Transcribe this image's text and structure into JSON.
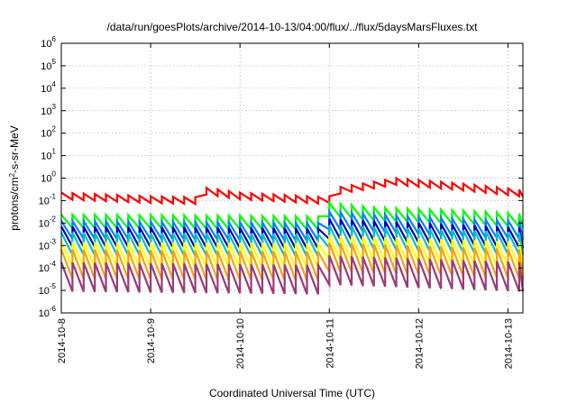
{
  "chart_data": {
    "type": "line",
    "title": "/data/run/goesPlots/archive/2014-10-13/04:00/flux/../flux/5daysMarsFluxes.txt",
    "xlabel": "Coordinated Universal Time (UTC)",
    "ylabel": "protons/cm²-s-sr-MeV",
    "ylabel_parts": {
      "pre": "protons/cm",
      "sup": "2",
      "post": "-s-sr-MeV"
    },
    "y_scale": "log",
    "ylim": [
      1e-06,
      1000000.0
    ],
    "xlim": [
      "2014-10-08T00:00",
      "2014-10-13T04:00"
    ],
    "grid": true,
    "legend": "none",
    "x_ticks": [
      {
        "label": "2014-10-8",
        "at": "2014-10-08T00:00"
      },
      {
        "label": "2014-10-9",
        "at": "2014-10-09T00:00"
      },
      {
        "label": "2014-10-10",
        "at": "2014-10-10T00:00"
      },
      {
        "label": "2014-10-11",
        "at": "2014-10-11T00:00"
      },
      {
        "label": "2014-10-12",
        "at": "2014-10-12T00:00"
      },
      {
        "label": "2014-10-13",
        "at": "2014-10-13T00:00"
      }
    ],
    "y_ticks": [
      {
        "value": 1e-06,
        "base": "10",
        "exp": "-6"
      },
      {
        "value": 1e-05,
        "base": "10",
        "exp": "-5"
      },
      {
        "value": 0.0001,
        "base": "10",
        "exp": "-4"
      },
      {
        "value": 0.001,
        "base": "10",
        "exp": "-3"
      },
      {
        "value": 0.01,
        "base": "10",
        "exp": "-2"
      },
      {
        "value": 0.1,
        "base": "10",
        "exp": "-1"
      },
      {
        "value": 1.0,
        "base": "10",
        "exp": "0"
      },
      {
        "value": 10.0,
        "base": "10",
        "exp": "1"
      },
      {
        "value": 100.0,
        "base": "10",
        "exp": "2"
      },
      {
        "value": 1000.0,
        "base": "10",
        "exp": "3"
      },
      {
        "value": 10000.0,
        "base": "10",
        "exp": "4"
      },
      {
        "value": 100000.0,
        "base": "10",
        "exp": "5"
      },
      {
        "value": 1000000.0,
        "base": "10",
        "exp": "6"
      }
    ],
    "sawtooth_period_hours": 3,
    "series": [
      {
        "color": "#ff0000",
        "amplitude_decades": 0.3,
        "points": [
          {
            "x": "2014-10-08T00:00",
            "y": 0.16
          },
          {
            "x": "2014-10-09T00:00",
            "y": 0.11
          },
          {
            "x": "2014-10-09T12:00",
            "y": 0.1
          },
          {
            "x": "2014-10-09T12:30",
            "y": 0.3
          },
          {
            "x": "2014-10-10T00:00",
            "y": 0.16
          },
          {
            "x": "2014-10-10T23:00",
            "y": 0.1
          },
          {
            "x": "2014-10-11T00:00",
            "y": 0.11
          },
          {
            "x": "2014-10-11T00:30",
            "y": 0.25
          },
          {
            "x": "2014-10-11T18:00",
            "y": 0.7
          },
          {
            "x": "2014-10-12T12:00",
            "y": 0.4
          },
          {
            "x": "2014-10-13T04:00",
            "y": 0.21
          }
        ]
      },
      {
        "color": "#00ff00",
        "amplitude_decades": 0.6,
        "points": [
          {
            "x": "2014-10-08T00:00",
            "y": 0.012
          },
          {
            "x": "2014-10-10T23:30",
            "y": 0.01
          },
          {
            "x": "2014-10-11T00:00",
            "y": 0.04
          },
          {
            "x": "2014-10-11T12:00",
            "y": 0.025
          },
          {
            "x": "2014-10-12T12:00",
            "y": 0.018
          },
          {
            "x": "2014-10-13T04:00",
            "y": 0.013
          }
        ]
      },
      {
        "color": "#0080ff",
        "amplitude_decades": 0.8,
        "points": [
          {
            "x": "2014-10-08T00:00",
            "y": 0.005
          },
          {
            "x": "2014-10-10T23:30",
            "y": 0.004
          },
          {
            "x": "2014-10-11T00:00",
            "y": 0.013
          },
          {
            "x": "2014-10-12T12:00",
            "y": 0.006
          },
          {
            "x": "2014-10-13T04:00",
            "y": 0.005
          }
        ]
      },
      {
        "color": "#0000c0",
        "amplitude_decades": 0.9,
        "points": [
          {
            "x": "2014-10-08T00:00",
            "y": 0.0025
          },
          {
            "x": "2014-10-10T23:30",
            "y": 0.002
          },
          {
            "x": "2014-10-11T00:00",
            "y": 0.0055
          },
          {
            "x": "2014-10-12T12:00",
            "y": 0.003
          },
          {
            "x": "2014-10-13T04:00",
            "y": 0.0022
          }
        ]
      },
      {
        "color": "#00c0c0",
        "amplitude_decades": 1.0,
        "points": [
          {
            "x": "2014-10-08T00:00",
            "y": 0.0012
          },
          {
            "x": "2014-10-10T23:30",
            "y": 0.001
          },
          {
            "x": "2014-10-11T00:00",
            "y": 0.0025
          },
          {
            "x": "2014-10-13T04:00",
            "y": 0.0012
          }
        ]
      },
      {
        "color": "#ffff00",
        "amplitude_decades": 1.1,
        "points": [
          {
            "x": "2014-10-08T00:00",
            "y": 0.0004
          },
          {
            "x": "2014-10-10T23:30",
            "y": 0.00035
          },
          {
            "x": "2014-10-11T00:00",
            "y": 0.0008
          },
          {
            "x": "2014-10-13T04:00",
            "y": 0.0004
          }
        ]
      },
      {
        "color": "#ffa000",
        "amplitude_decades": 1.3,
        "points": [
          {
            "x": "2014-10-08T00:00",
            "y": 0.00015
          },
          {
            "x": "2014-10-10T23:30",
            "y": 0.00012
          },
          {
            "x": "2014-10-11T00:00",
            "y": 0.0003
          },
          {
            "x": "2014-10-13T04:00",
            "y": 0.00015
          }
        ]
      },
      {
        "color": "#9b3a78",
        "amplitude_decades": 1.3,
        "points": [
          {
            "x": "2014-10-08T00:00",
            "y": 4e-05
          },
          {
            "x": "2014-10-10T23:30",
            "y": 3e-05
          },
          {
            "x": "2014-10-11T00:00",
            "y": 8e-05
          },
          {
            "x": "2014-10-13T04:00",
            "y": 4e-05
          }
        ]
      }
    ]
  }
}
